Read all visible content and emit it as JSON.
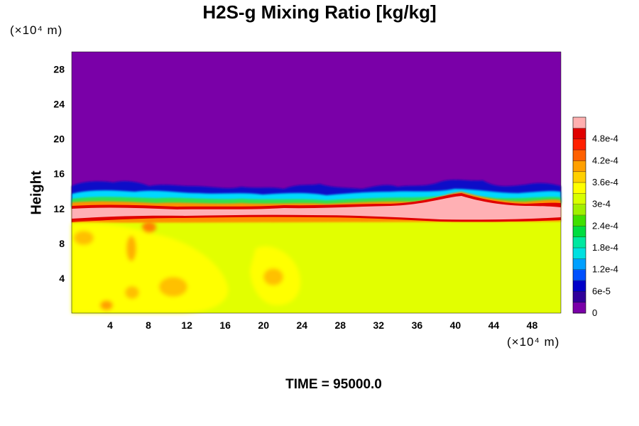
{
  "chart_data": {
    "type": "heatmap",
    "title": "H2S-g Mixing Ratio [kg/kg]",
    "ylabel": "Height",
    "x_unit": "(×10⁴ m)",
    "y_unit": "(×10⁴ m)",
    "x_ticks": [
      "4",
      "8",
      "12",
      "16",
      "20",
      "24",
      "28",
      "32",
      "36",
      "40",
      "44",
      "48"
    ],
    "y_ticks": [
      "4",
      "8",
      "12",
      "16",
      "20",
      "24",
      "28"
    ],
    "xlim": [
      0,
      51
    ],
    "ylim": [
      0,
      30
    ],
    "colorbar": {
      "range": [
        0,
        0.00052
      ],
      "labels": [
        "0",
        "6e-5",
        "1.2e-4",
        "1.8e-4",
        "2.4e-4",
        "3e-4",
        "3.6e-4",
        "4.2e-4",
        "4.8e-4"
      ],
      "colors": [
        "#7a00a8",
        "#30009a",
        "#0000c8",
        "#0050ff",
        "#00a0ff",
        "#00e0e0",
        "#00e8a0",
        "#00dd40",
        "#40e000",
        "#a0f000",
        "#d8ff00",
        "#ffff00",
        "#ffd000",
        "#ffa000",
        "#ff6000",
        "#ff2000",
        "#e00000",
        "#ffb0b0"
      ]
    },
    "fields": {
      "upper_region_value": "0",
      "lower_region_value": "3.6e-4",
      "high_band_value": "> 4.8e-4"
    }
  },
  "footer": "TIME = 95000.0"
}
